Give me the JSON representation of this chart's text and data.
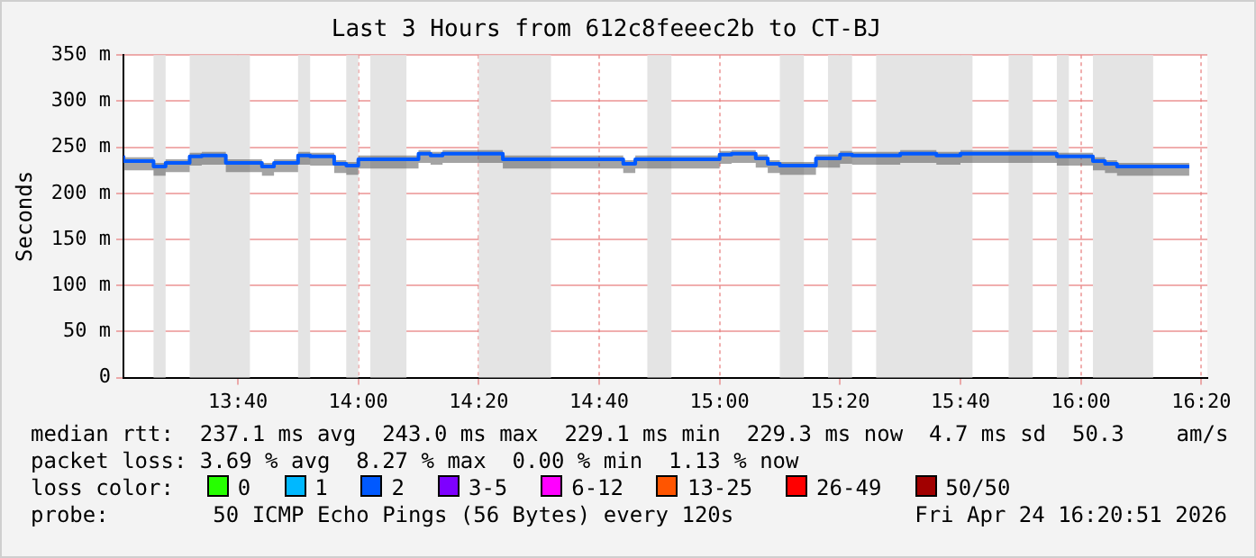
{
  "chart_data": {
    "type": "step",
    "title": "Last 3 Hours from 612c8feeec2b to CT-BJ",
    "ylabel": "Seconds",
    "x": [
      13.35,
      13.4333,
      13.4667,
      13.5333,
      13.5667,
      13.6333,
      13.7333,
      13.7667,
      13.8333,
      13.8667,
      13.9333,
      13.9667,
      14,
      14.1667,
      14.2,
      14.2333,
      14.4,
      14.7333,
      14.7667,
      15,
      15.0333,
      15.1,
      15.1333,
      15.1667,
      15.2667,
      15.3333,
      15.3667,
      15.5,
      15.6,
      15.6667,
      15.9333,
      16.0333,
      16.0667,
      16.1,
      16.1667,
      16.3
    ],
    "series": [
      {
        "color": "#0059ff",
        "values": [
          241,
          235,
          229,
          233,
          240,
          241,
          233,
          229,
          233,
          241,
          240,
          232,
          230,
          237,
          243,
          241,
          243,
          237,
          232,
          237,
          242,
          243,
          238,
          232,
          230,
          238,
          242,
          241,
          243,
          241,
          243,
          240,
          235,
          232,
          229,
          229
        ],
        "lower": [
          231,
          225,
          219,
          223,
          230,
          231,
          223,
          219,
          223,
          231,
          230,
          222,
          220,
          227,
          233,
          231,
          233,
          227,
          222,
          227,
          232,
          233,
          228,
          222,
          220,
          228,
          232,
          231,
          233,
          231,
          233,
          230,
          225,
          222,
          219,
          219
        ],
        "upper": [
          245,
          239,
          233,
          237,
          244,
          245,
          237,
          233,
          237,
          245,
          244,
          236,
          234,
          241,
          247,
          245,
          247,
          241,
          236,
          241,
          246,
          247,
          242,
          236,
          234,
          242,
          246,
          245,
          247,
          245,
          247,
          244,
          239,
          236,
          233,
          233
        ]
      }
    ],
    "xlim": [
      13.35,
      16.35
    ],
    "xticks": [
      {
        "value": 13.6667,
        "label": "13:40"
      },
      {
        "value": 14,
        "label": "14:00"
      },
      {
        "value": 14.3333,
        "label": "14:20"
      },
      {
        "value": 14.6667,
        "label": "14:40"
      },
      {
        "value": 15,
        "label": "15:00"
      },
      {
        "value": 15.3333,
        "label": "15:20"
      },
      {
        "value": 15.6667,
        "label": "15:40"
      },
      {
        "value": 16,
        "label": "16:00"
      },
      {
        "value": 16.3333,
        "label": "16:20"
      }
    ],
    "ylim": [
      0,
      350
    ],
    "yticks": [
      0,
      {
        "value": 50,
        "label": "50 m"
      },
      {
        "value": 100,
        "label": "100 m"
      },
      {
        "value": 150,
        "label": "150 m"
      },
      {
        "value": 200,
        "label": "200 m"
      },
      {
        "value": 250,
        "label": "250 m"
      },
      {
        "value": 300,
        "label": "300 m"
      },
      {
        "value": 350,
        "label": "350 m"
      }
    ],
    "grid": true,
    "legend": false,
    "bands": [
      {
        "axis": "x",
        "from": 13.4333,
        "to": 13.4667,
        "color": "#e4e4e4"
      },
      {
        "axis": "x",
        "from": 13.5333,
        "to": 13.7,
        "color": "#e4e4e4"
      },
      {
        "axis": "x",
        "from": 13.8333,
        "to": 13.8667,
        "color": "#e4e4e4"
      },
      {
        "axis": "x",
        "from": 13.9667,
        "to": 14,
        "color": "#e4e4e4"
      },
      {
        "axis": "x",
        "from": 14.0333,
        "to": 14.1333,
        "color": "#e4e4e4"
      },
      {
        "axis": "x",
        "from": 14.3333,
        "to": 14.5333,
        "color": "#e4e4e4"
      },
      {
        "axis": "x",
        "from": 14.8,
        "to": 14.8667,
        "color": "#e4e4e4"
      },
      {
        "axis": "x",
        "from": 15.1667,
        "to": 15.2333,
        "color": "#e4e4e4"
      },
      {
        "axis": "x",
        "from": 15.3,
        "to": 15.3667,
        "color": "#e4e4e4"
      },
      {
        "axis": "x",
        "from": 15.4333,
        "to": 15.7,
        "color": "#e4e4e4"
      },
      {
        "axis": "x",
        "from": 15.8,
        "to": 15.8667,
        "color": "#e4e4e4"
      },
      {
        "axis": "x",
        "from": 15.9333,
        "to": 15.9667,
        "color": "#e4e4e4"
      },
      {
        "axis": "x",
        "from": 16.0333,
        "to": 16.2,
        "color": "#e4e4e4"
      }
    ],
    "annotations": [
      "median rtt:  237.1 ms avg  243.0 ms max  229.1 ms min  229.3 ms now  4.7 ms sd  50.3    am/s",
      "packet loss: 3.69 % avg  8.27 % max  0.00 % min  1.13 % now",
      "loss color:  0  1  2  3-5  6-12  13-25  26-49  50/50",
      "probe:        50 ICMP Echo Pings (56 Bytes) every 120s",
      "Fri Apr 24 16:20:51 2026"
    ]
  }
}
